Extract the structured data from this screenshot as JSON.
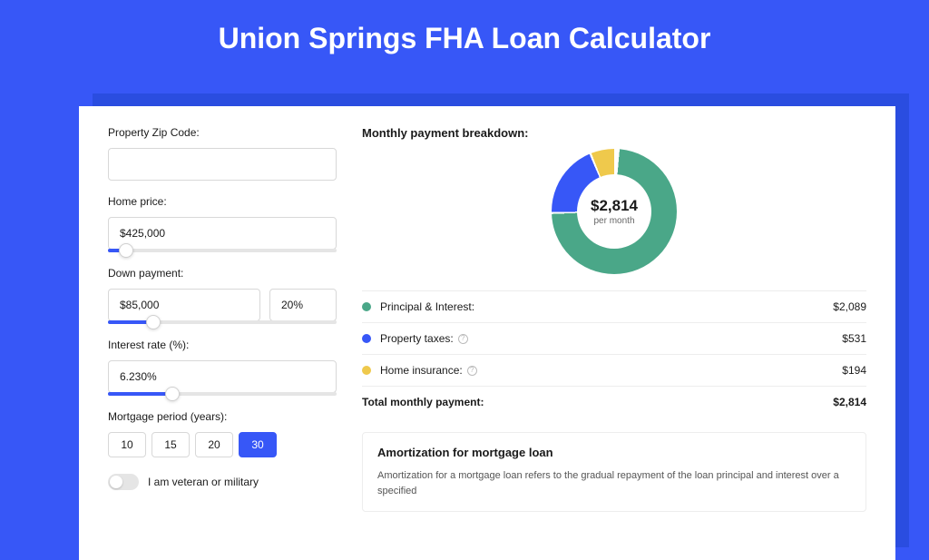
{
  "title": "Union Springs FHA Loan Calculator",
  "colors": {
    "page_bg": "#3757f7",
    "shadow": "#2a4de0",
    "card_bg": "#ffffff",
    "accent": "#3757f7",
    "slider_track": "#e5e5e5",
    "border": "#d8d8d8",
    "divider": "#ededed"
  },
  "form": {
    "zip": {
      "label": "Property Zip Code:",
      "value": ""
    },
    "home_price": {
      "label": "Home price:",
      "value": "$425,000",
      "slider_pct": 8
    },
    "down_payment": {
      "label": "Down payment:",
      "amount": "$85,000",
      "pct": "20%",
      "slider_pct": 20
    },
    "interest": {
      "label": "Interest rate (%):",
      "value": "6.230%",
      "slider_pct": 28
    },
    "period": {
      "label": "Mortgage period (years):",
      "options": [
        "10",
        "15",
        "20",
        "30"
      ],
      "selected": "30"
    },
    "veteran": {
      "label": "I am veteran or military",
      "checked": false
    }
  },
  "breakdown": {
    "title": "Monthly payment breakdown:",
    "center_amount": "$2,814",
    "center_sub": "per month",
    "donut": {
      "segments": [
        {
          "color": "#4aa788",
          "pct": 74.2
        },
        {
          "color": "#3757f7",
          "pct": 18.9
        },
        {
          "color": "#efc94c",
          "pct": 6.9
        }
      ],
      "gap_deg": 2,
      "start_deg": 5
    },
    "items": [
      {
        "label": "Principal & Interest:",
        "value": "$2,089",
        "color": "#4aa788",
        "info": false
      },
      {
        "label": "Property taxes:",
        "value": "$531",
        "color": "#3757f7",
        "info": true
      },
      {
        "label": "Home insurance:",
        "value": "$194",
        "color": "#efc94c",
        "info": true
      }
    ],
    "total": {
      "label": "Total monthly payment:",
      "value": "$2,814"
    }
  },
  "amortization": {
    "title": "Amortization for mortgage loan",
    "text": "Amortization for a mortgage loan refers to the gradual repayment of the loan principal and interest over a specified"
  }
}
